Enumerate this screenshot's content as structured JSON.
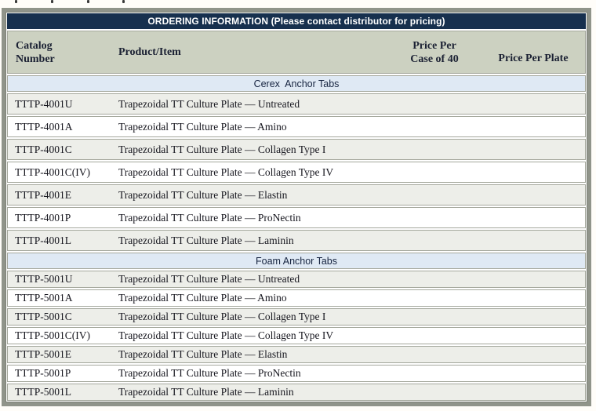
{
  "table": {
    "title": "ORDERING INFORMATION (Please contact distributor for pricing)",
    "columns": [
      {
        "line1": "Catalog",
        "line2": "Number"
      },
      {
        "line1": "Product/Item",
        "line2": ""
      },
      {
        "line1": "Price Per",
        "line2": "Case of 40"
      },
      {
        "line1": "Price Per Plate",
        "line2": ""
      }
    ],
    "sections": [
      {
        "name": "Cerex  Anchor Tabs",
        "rows": [
          {
            "catalog": "TTTP-4001U",
            "product": "Trapezoidal TT Culture Plate — Untreated",
            "price_per_case": "",
            "price_per_plate": ""
          },
          {
            "catalog": "TTTP-4001A",
            "product": "Trapezoidal TT Culture Plate — Amino",
            "price_per_case": "",
            "price_per_plate": ""
          },
          {
            "catalog": "TTTP-4001C",
            "product": "Trapezoidal TT Culture Plate — Collagen Type I",
            "price_per_case": "",
            "price_per_plate": ""
          },
          {
            "catalog": "TTTP-4001C(IV)",
            "product": "Trapezoidal TT Culture Plate — Collagen Type IV",
            "price_per_case": "",
            "price_per_plate": ""
          },
          {
            "catalog": "TTTP-4001E",
            "product": "Trapezoidal TT Culture Plate — Elastin",
            "price_per_case": "",
            "price_per_plate": ""
          },
          {
            "catalog": "TTTP-4001P",
            "product": "Trapezoidal TT Culture Plate — ProNectin",
            "price_per_case": "",
            "price_per_plate": ""
          },
          {
            "catalog": "TTTP-4001L",
            "product": "Trapezoidal TT Culture Plate — Laminin",
            "price_per_case": "",
            "price_per_plate": ""
          }
        ]
      },
      {
        "name": "Foam Anchor Tabs",
        "rows": [
          {
            "catalog": "TTTP-5001U",
            "product": "Trapezoidal TT Culture Plate — Untreated",
            "price_per_case": "",
            "price_per_plate": ""
          },
          {
            "catalog": "TTTP-5001A",
            "product": "Trapezoidal TT Culture Plate — Amino",
            "price_per_case": "",
            "price_per_plate": ""
          },
          {
            "catalog": "TTTP-5001C",
            "product": "Trapezoidal TT Culture Plate — Collagen Type I",
            "price_per_case": "",
            "price_per_plate": ""
          },
          {
            "catalog": "TTTP-5001C(IV)",
            "product": "Trapezoidal TT Culture Plate — Collagen Type IV",
            "price_per_case": "",
            "price_per_plate": ""
          },
          {
            "catalog": "TTTP-5001E",
            "product": "Trapezoidal TT Culture Plate — Elastin",
            "price_per_case": "",
            "price_per_plate": ""
          },
          {
            "catalog": "TTTP-5001P",
            "product": "Trapezoidal TT Culture Plate — ProNectin",
            "price_per_case": "",
            "price_per_plate": ""
          },
          {
            "catalog": "TTTP-5001L",
            "product": "Trapezoidal TT Culture Plate — Laminin",
            "price_per_case": "",
            "price_per_plate": ""
          }
        ]
      }
    ],
    "colors": {
      "title_bar": "#17304e",
      "title_text": "#ffffff",
      "column_header_bg": "#ccd1c1",
      "section_bg": "#dfe9f4",
      "row_shaded_bg": "#edeee9",
      "row_plain_bg": "#ffffff",
      "frame_border": "#90948a",
      "cell_border": "#a4a79c",
      "body_text": "#16161e"
    }
  }
}
